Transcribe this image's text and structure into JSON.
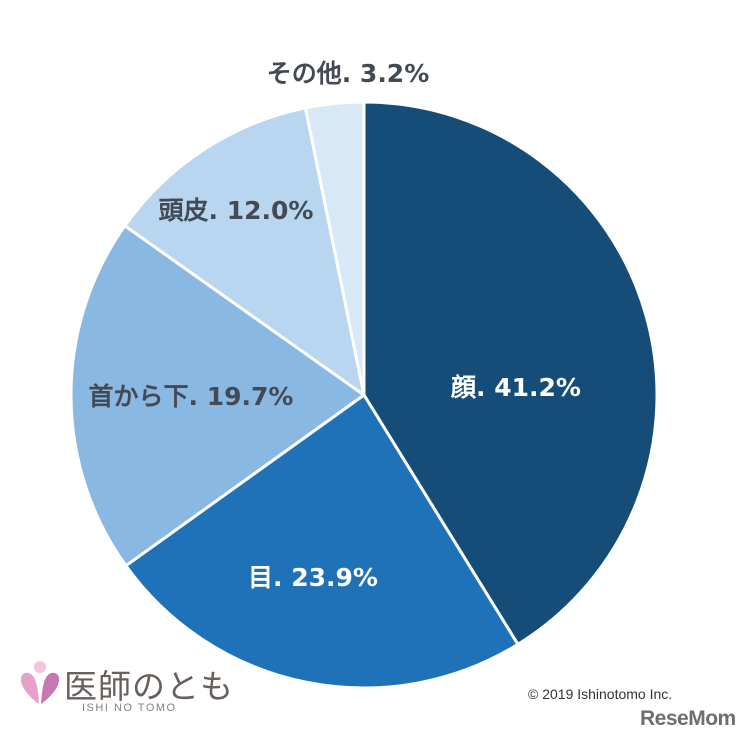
{
  "chart_data": {
    "type": "pie",
    "title": "",
    "start_angle_deg": 0,
    "direction": "clockwise",
    "slices": [
      {
        "label": "顔",
        "value": 41.2,
        "display": "顔. 41.2%",
        "color": "#154d78",
        "text_color": "#ffffff"
      },
      {
        "label": "目",
        "value": 23.9,
        "display": "目. 23.9%",
        "color": "#1f71b8",
        "text_color": "#ffffff"
      },
      {
        "label": "首から下",
        "value": 19.7,
        "display": "首から下. 19.7%",
        "color": "#89b9e2",
        "text_color": "#444a55"
      },
      {
        "label": "頭皮",
        "value": 12.0,
        "display": "頭皮. 12.0%",
        "color": "#b8d6ef",
        "text_color": "#444a55"
      },
      {
        "label": "その他",
        "value": 3.2,
        "display": "その他. 3.2%",
        "color": "#d9e8f6",
        "text_color": "#444a55"
      }
    ]
  },
  "logo": {
    "name": "医師のとも",
    "subtitle": "ISHI NO TOMO",
    "icon": "heart-figure-icon",
    "colors": [
      "#e8a0c8",
      "#c778b0",
      "#f2c4dd"
    ]
  },
  "copyright": "©    2019    Ishinotomo Inc.",
  "watermark": {
    "text": "ReseMom"
  }
}
